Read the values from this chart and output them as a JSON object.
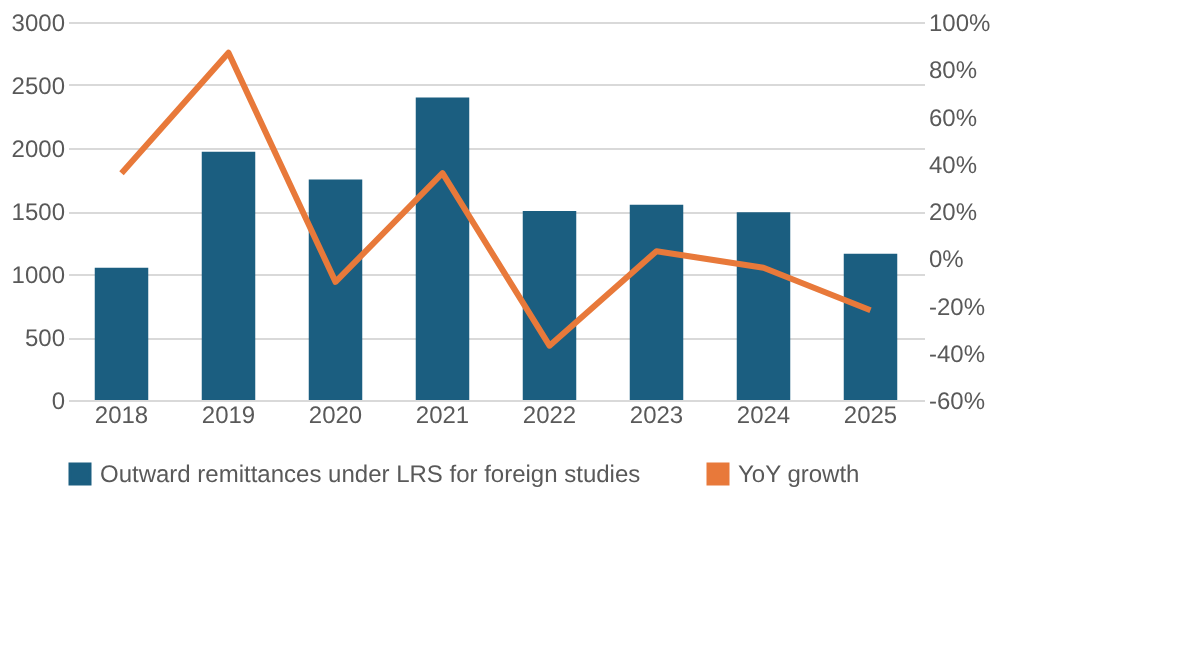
{
  "chart_data": {
    "type": "bar",
    "categories": [
      "2018",
      "2019",
      "2020",
      "2021",
      "2022",
      "2023",
      "2024",
      "2025"
    ],
    "series": [
      {
        "name": "Outward remittances under LRS for foreign studies",
        "color": "#1b5e80",
        "values": [
          1050,
          1970,
          1750,
          2400,
          1500,
          1550,
          1490,
          1160
        ]
      },
      {
        "name": "YoY growth",
        "type": "line",
        "axis": "y2",
        "color": "#e8793a",
        "values": [
          36,
          87,
          -10,
          36,
          -37,
          3,
          -4,
          -22
        ]
      }
    ],
    "ylim": [
      0,
      3000
    ],
    "yticks": [
      0,
      500,
      1000,
      1500,
      2000,
      2500,
      3000
    ],
    "y2lim": [
      -60,
      100
    ],
    "y2ticks": [
      {
        "value": -60,
        "label": "-60%"
      },
      {
        "value": -40,
        "label": "-40%"
      },
      {
        "value": -20,
        "label": "-20%"
      },
      {
        "value": 0,
        "label": "0%"
      },
      {
        "value": 20,
        "label": "20%"
      },
      {
        "value": 40,
        "label": "40%"
      },
      {
        "value": 60,
        "label": "60%"
      },
      {
        "value": 80,
        "label": "80%"
      },
      {
        "value": 100,
        "label": "100%"
      }
    ],
    "grid": "y",
    "legend": "bottom",
    "marker": "none",
    "line_style": "solid"
  }
}
